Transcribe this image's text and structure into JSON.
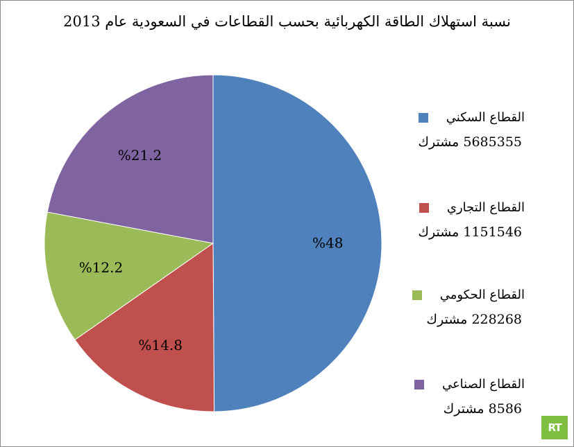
{
  "chart_data": {
    "type": "pie",
    "title": "نسبة استهلاك الطاقة الكهربائية بحسب القطاعات في السعودية عام 2013",
    "categories": [
      "القطاع السكني",
      "القطاع التجاري",
      "القطاع الحكومي",
      "القطاع الصناعي"
    ],
    "values": [
      48,
      14.8,
      12.2,
      21.2
    ],
    "value_labels": [
      "%48",
      "%14.8",
      "%12.2",
      "%21.2"
    ],
    "counts": [
      "5685355 مشترك",
      "1151546 مشترك",
      "228268 مشترك",
      "8586 مشترك"
    ],
    "colors": [
      "#4f81bd",
      "#c0504d",
      "#9bbb59",
      "#8064a2"
    ],
    "legend_position": "right",
    "start_angle": "top",
    "direction": "clockwise"
  },
  "logo_text": "RT"
}
